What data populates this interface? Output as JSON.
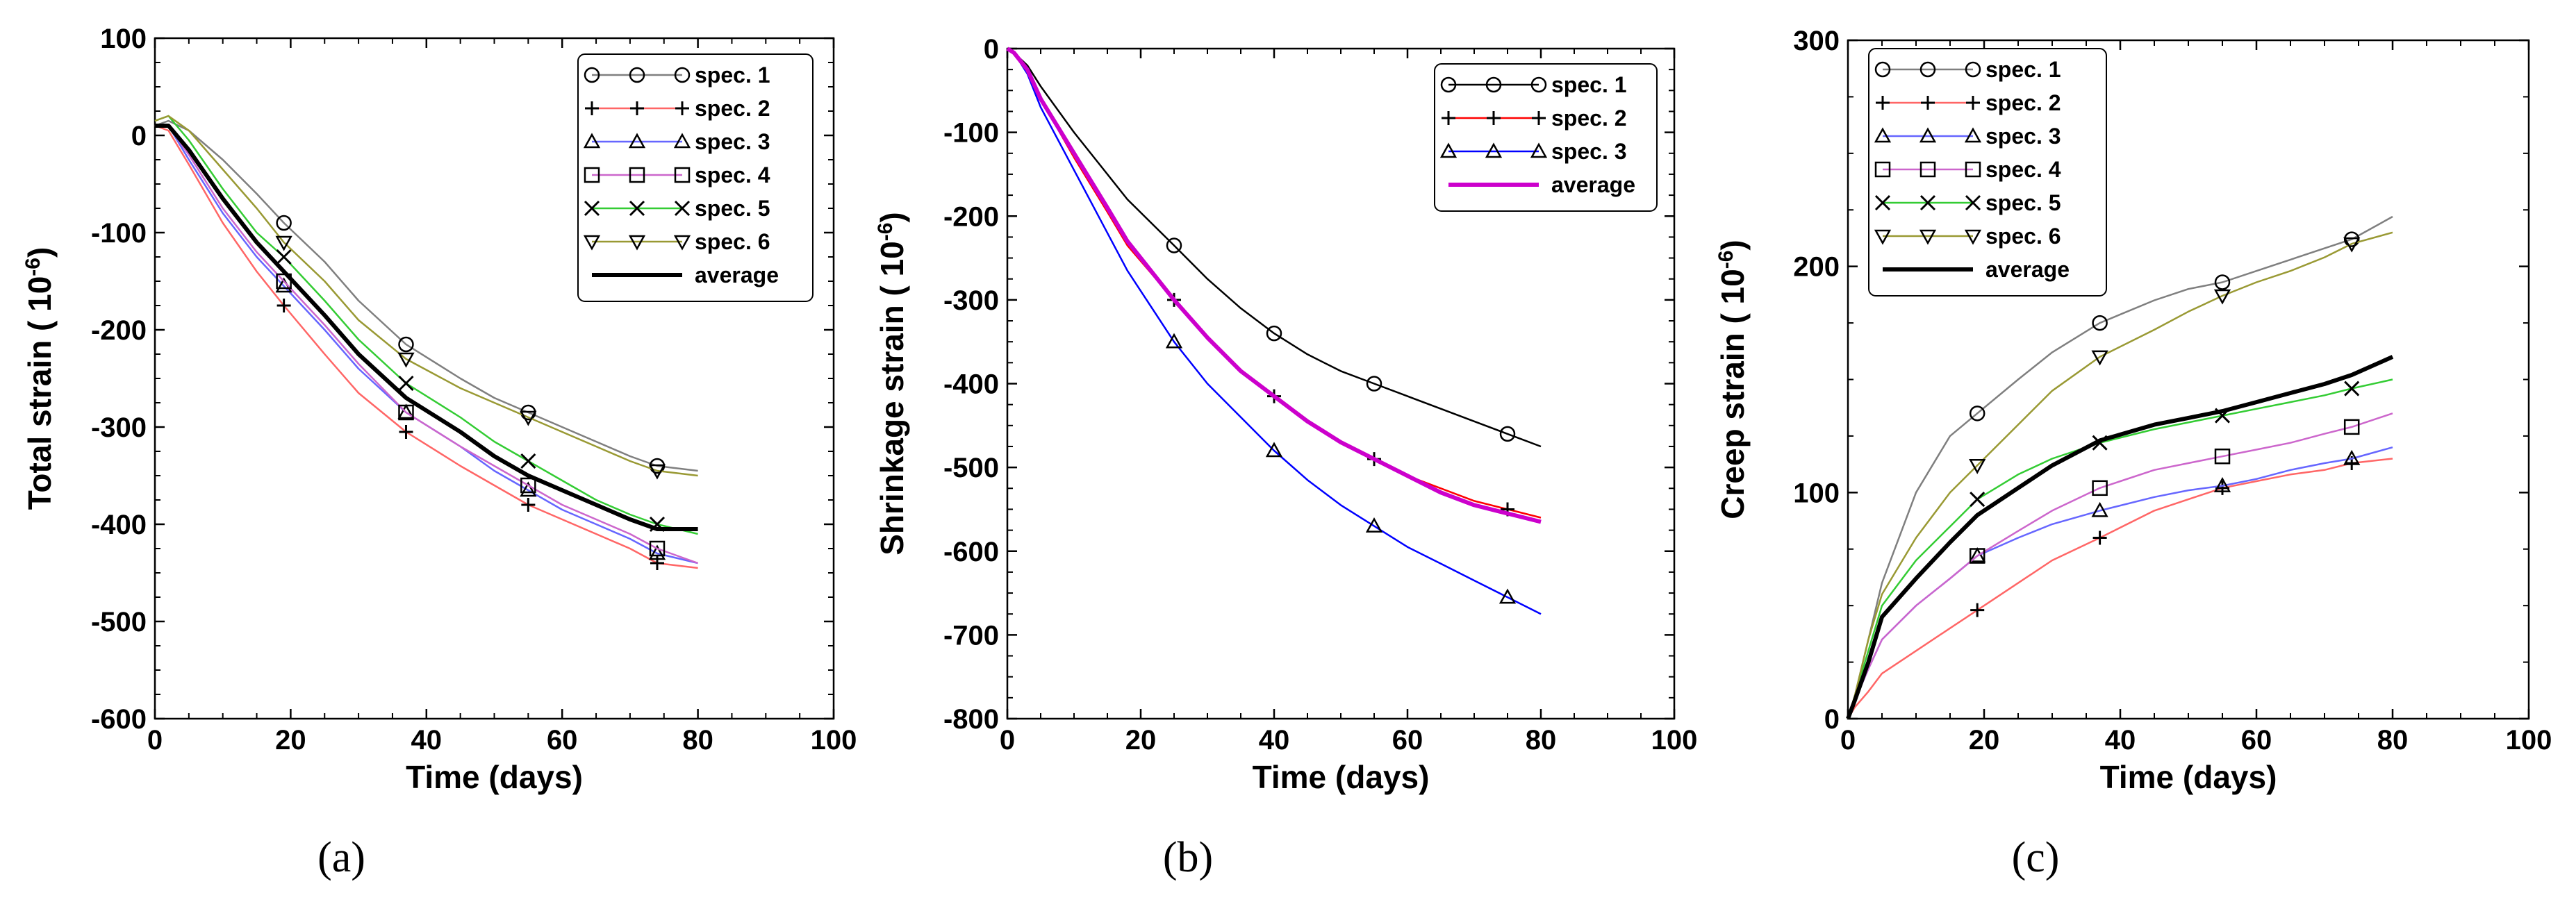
{
  "chart_data": [
    {
      "id": "a",
      "type": "line",
      "panel_label": "(a)",
      "xlabel": "Time (days)",
      "ylabel": "Total strain (\u0018 10",
      "ylabel_sup": "-6",
      "ylabel_close": ")",
      "xlim": [
        0,
        100
      ],
      "ylim": [
        -600,
        100
      ],
      "xticks": [
        0,
        20,
        40,
        60,
        80,
        100
      ],
      "yticks": [
        -600,
        -500,
        -400,
        -300,
        -200,
        -100,
        0,
        100
      ],
      "legend_position": "top-right",
      "series": [
        {
          "name": "spec. 1",
          "color": "#7f7f7f",
          "marker": "circle",
          "x": [
            0,
            2,
            5,
            10,
            15,
            19,
            25,
            30,
            37,
            45,
            50,
            55,
            60,
            65,
            70,
            74,
            80
          ],
          "y": [
            10,
            15,
            5,
            -25,
            -60,
            -90,
            -130,
            -170,
            -215,
            -250,
            -270,
            -285,
            -300,
            -315,
            -330,
            -340,
            -345
          ]
        },
        {
          "name": "spec. 2",
          "color": "#ff6666",
          "marker": "plus",
          "x": [
            0,
            2,
            5,
            10,
            15,
            19,
            25,
            30,
            37,
            45,
            50,
            55,
            60,
            65,
            70,
            74,
            80
          ],
          "y": [
            10,
            5,
            -30,
            -90,
            -140,
            -175,
            -225,
            -265,
            -305,
            -340,
            -360,
            -380,
            -395,
            -410,
            -425,
            -440,
            -445
          ]
        },
        {
          "name": "spec. 3",
          "color": "#6666ff",
          "marker": "triangle",
          "x": [
            0,
            2,
            5,
            10,
            15,
            19,
            25,
            30,
            37,
            45,
            50,
            55,
            60,
            65,
            70,
            74,
            80
          ],
          "y": [
            10,
            10,
            -25,
            -80,
            -125,
            -155,
            -200,
            -240,
            -285,
            -320,
            -345,
            -365,
            -385,
            -400,
            -415,
            -430,
            -440
          ]
        },
        {
          "name": "spec. 4",
          "color": "#cc66cc",
          "marker": "square",
          "x": [
            0,
            2,
            5,
            10,
            15,
            19,
            25,
            30,
            37,
            45,
            50,
            55,
            60,
            65,
            70,
            74,
            80
          ],
          "y": [
            10,
            10,
            -20,
            -75,
            -120,
            -150,
            -195,
            -235,
            -285,
            -320,
            -340,
            -360,
            -380,
            -395,
            -410,
            -425,
            -440
          ]
        },
        {
          "name": "spec. 5",
          "color": "#33cc33",
          "marker": "x",
          "x": [
            0,
            2,
            5,
            10,
            15,
            19,
            25,
            30,
            37,
            45,
            50,
            55,
            60,
            65,
            70,
            74,
            80
          ],
          "y": [
            15,
            20,
            -5,
            -55,
            -100,
            -125,
            -170,
            -210,
            -255,
            -290,
            -315,
            -335,
            -355,
            -375,
            -390,
            -400,
            -410
          ]
        },
        {
          "name": "spec. 6",
          "color": "#999933",
          "marker": "triangle-down",
          "x": [
            0,
            2,
            5,
            10,
            15,
            19,
            25,
            30,
            37,
            45,
            50,
            55,
            60,
            65,
            70,
            74,
            80
          ],
          "y": [
            15,
            20,
            5,
            -35,
            -75,
            -110,
            -150,
            -190,
            -230,
            -260,
            -275,
            -290,
            -305,
            -320,
            -335,
            -345,
            -350
          ]
        },
        {
          "name": "average",
          "color": "#000000",
          "marker": "none",
          "x": [
            0,
            2,
            5,
            10,
            15,
            19,
            25,
            30,
            37,
            45,
            50,
            55,
            60,
            65,
            70,
            74,
            80
          ],
          "y": [
            10,
            10,
            -15,
            -65,
            -110,
            -140,
            -185,
            -225,
            -270,
            -305,
            -330,
            -350,
            -365,
            -380,
            -395,
            -405,
            -405
          ]
        }
      ]
    },
    {
      "id": "b",
      "type": "line",
      "panel_label": "(b)",
      "xlabel": "Time (days)",
      "ylabel": "Shrinkage strain (\u0018 10",
      "ylabel_sup": "-6",
      "ylabel_close": ")",
      "xlim": [
        0,
        100
      ],
      "ylim": [
        -800,
        0
      ],
      "xticks": [
        0,
        20,
        40,
        60,
        80,
        100
      ],
      "yticks": [
        -800,
        -700,
        -600,
        -500,
        -400,
        -300,
        -200,
        -100,
        0
      ],
      "legend_position": "top-right",
      "series": [
        {
          "name": "spec. 1",
          "color": "#000000",
          "marker": "circle",
          "x": [
            0,
            1,
            3,
            5,
            10,
            15,
            18,
            25,
            30,
            35,
            40,
            45,
            50,
            55,
            60,
            65,
            70,
            75,
            80
          ],
          "y": [
            0,
            -5,
            -20,
            -45,
            -100,
            -150,
            -180,
            -235,
            -275,
            -310,
            -340,
            -365,
            -385,
            -400,
            -415,
            -430,
            -445,
            -460,
            -475
          ]
        },
        {
          "name": "spec. 2",
          "color": "#ff0000",
          "marker": "plus",
          "x": [
            0,
            1,
            3,
            5,
            10,
            15,
            18,
            25,
            30,
            35,
            40,
            45,
            50,
            55,
            60,
            65,
            70,
            75,
            80
          ],
          "y": [
            0,
            -5,
            -25,
            -60,
            -130,
            -195,
            -235,
            -300,
            -345,
            -385,
            -415,
            -445,
            -470,
            -490,
            -510,
            -525,
            -540,
            -550,
            -560
          ]
        },
        {
          "name": "spec. 3",
          "color": "#0000ff",
          "marker": "triangle",
          "x": [
            0,
            1,
            3,
            5,
            10,
            15,
            18,
            25,
            30,
            35,
            40,
            45,
            50,
            55,
            60,
            65,
            70,
            75,
            80
          ],
          "y": [
            0,
            -5,
            -30,
            -70,
            -145,
            -220,
            -265,
            -350,
            -400,
            -440,
            -480,
            -515,
            -545,
            -570,
            -595,
            -615,
            -635,
            -655,
            -675
          ]
        },
        {
          "name": "average",
          "color": "#cc00cc",
          "marker": "none",
          "x": [
            0,
            1,
            3,
            5,
            10,
            15,
            18,
            25,
            30,
            35,
            40,
            45,
            50,
            55,
            60,
            65,
            70,
            75,
            80
          ],
          "y": [
            0,
            -5,
            -25,
            -60,
            -125,
            -190,
            -230,
            -300,
            -345,
            -385,
            -415,
            -445,
            -470,
            -490,
            -510,
            -530,
            -545,
            -555,
            -565
          ]
        }
      ]
    },
    {
      "id": "c",
      "type": "line",
      "panel_label": "(c)",
      "xlabel": "Time (days)",
      "ylabel": "Creep strain (\u0018 10",
      "ylabel_sup": "-6",
      "ylabel_close": ")",
      "xlim": [
        0,
        100
      ],
      "ylim": [
        0,
        300
      ],
      "xticks": [
        0,
        20,
        40,
        60,
        80,
        100
      ],
      "yticks": [
        0,
        100,
        200,
        300
      ],
      "legend_position": "top-left",
      "series": [
        {
          "name": "spec. 1",
          "color": "#7f7f7f",
          "marker": "circle",
          "x": [
            0,
            1,
            3,
            5,
            10,
            15,
            19,
            25,
            30,
            37,
            45,
            50,
            55,
            60,
            65,
            70,
            74,
            80
          ],
          "y": [
            0,
            10,
            35,
            60,
            100,
            125,
            135,
            150,
            162,
            175,
            185,
            190,
            193,
            198,
            203,
            208,
            212,
            222
          ]
        },
        {
          "name": "spec. 2",
          "color": "#ff6666",
          "marker": "plus",
          "x": [
            0,
            1,
            3,
            5,
            10,
            15,
            19,
            25,
            30,
            37,
            45,
            50,
            55,
            60,
            65,
            70,
            74,
            80
          ],
          "y": [
            0,
            5,
            12,
            20,
            30,
            40,
            48,
            60,
            70,
            80,
            92,
            97,
            102,
            105,
            108,
            110,
            113,
            115
          ]
        },
        {
          "name": "spec. 3",
          "color": "#6666ff",
          "marker": "triangle",
          "x": [
            0,
            1,
            3,
            5,
            10,
            15,
            19,
            25,
            30,
            37,
            45,
            50,
            55,
            60,
            65,
            70,
            74,
            80
          ],
          "y": [
            0,
            8,
            22,
            35,
            50,
            62,
            72,
            80,
            86,
            92,
            98,
            101,
            103,
            106,
            110,
            113,
            115,
            120
          ]
        },
        {
          "name": "spec. 4",
          "color": "#cc66cc",
          "marker": "square",
          "x": [
            0,
            1,
            3,
            5,
            10,
            15,
            19,
            25,
            30,
            37,
            45,
            50,
            55,
            60,
            65,
            70,
            74,
            80
          ],
          "y": [
            0,
            8,
            22,
            35,
            50,
            62,
            72,
            83,
            92,
            102,
            110,
            113,
            116,
            119,
            122,
            126,
            129,
            135
          ]
        },
        {
          "name": "spec. 5",
          "color": "#33cc33",
          "marker": "x",
          "x": [
            0,
            1,
            3,
            5,
            10,
            15,
            19,
            25,
            30,
            37,
            45,
            50,
            55,
            60,
            65,
            70,
            74,
            80
          ],
          "y": [
            0,
            10,
            30,
            50,
            70,
            85,
            97,
            108,
            115,
            122,
            128,
            131,
            134,
            137,
            140,
            143,
            146,
            150
          ]
        },
        {
          "name": "spec. 6",
          "color": "#999933",
          "marker": "triangle-down",
          "x": [
            0,
            1,
            3,
            5,
            10,
            15,
            19,
            25,
            30,
            37,
            45,
            50,
            55,
            60,
            65,
            70,
            74,
            80
          ],
          "y": [
            0,
            10,
            35,
            55,
            80,
            100,
            112,
            130,
            145,
            160,
            172,
            180,
            187,
            193,
            198,
            204,
            210,
            215
          ]
        },
        {
          "name": "average",
          "color": "#000000",
          "marker": "none",
          "x": [
            0,
            1,
            3,
            5,
            10,
            15,
            19,
            25,
            30,
            37,
            45,
            50,
            55,
            60,
            65,
            70,
            74,
            80
          ],
          "y": [
            0,
            8,
            25,
            45,
            62,
            78,
            90,
            102,
            112,
            123,
            130,
            133,
            136,
            140,
            144,
            148,
            152,
            160
          ]
        }
      ]
    }
  ]
}
